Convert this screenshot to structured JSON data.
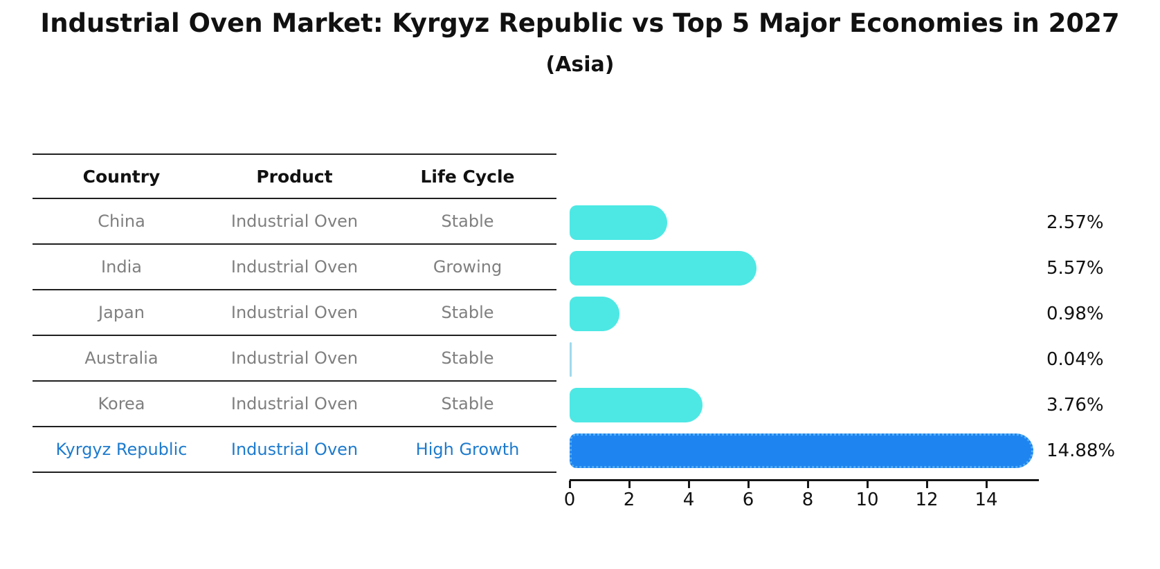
{
  "title": "Industrial Oven Market: Kyrgyz Republic vs Top 5 Major Economies in 2027",
  "subtitle": "(Asia)",
  "table": {
    "headers": [
      "Country",
      "Product",
      "Life Cycle"
    ],
    "rows": [
      {
        "country": "China",
        "product": "Industrial Oven",
        "life_cycle": "Stable",
        "highlight": false
      },
      {
        "country": "India",
        "product": "Industrial Oven",
        "life_cycle": "Growing",
        "highlight": false
      },
      {
        "country": "Japan",
        "product": "Industrial Oven",
        "life_cycle": "Stable",
        "highlight": false
      },
      {
        "country": "Australia",
        "product": "Industrial Oven",
        "life_cycle": "Stable",
        "highlight": false
      },
      {
        "country": "Korea",
        "product": "Industrial Oven",
        "life_cycle": "Stable",
        "highlight": false
      },
      {
        "country": "Kyrgyz Republic",
        "product": "Industrial Oven",
        "life_cycle": "High Growth",
        "highlight": true
      }
    ]
  },
  "chart_data": {
    "type": "bar",
    "orientation": "horizontal",
    "title": "Industrial Oven Market: Kyrgyz Republic vs Top 5 Major Economies in 2027",
    "subtitle": "(Asia)",
    "categories": [
      "China",
      "India",
      "Japan",
      "Australia",
      "Korea",
      "Kyrgyz Republic"
    ],
    "values": [
      2.57,
      5.57,
      0.98,
      0.04,
      3.76,
      14.88
    ],
    "value_labels": [
      "2.57%",
      "5.57%",
      "0.98%",
      "0.04%",
      "3.76%",
      "14.88%"
    ],
    "x_ticks": [
      0,
      2,
      4,
      6,
      8,
      10,
      12,
      14
    ],
    "xlim": [
      0,
      15.7
    ],
    "grid": false,
    "legend": false,
    "highlight_index": 5,
    "bar_color": "#4DE8E4",
    "sliver_color": "#9FDAED",
    "highlight_color": "#1E84F0",
    "highlight_border_color": "#55AFF5",
    "highlight_text_color": "#1E7BCD",
    "text_color": "#111111",
    "muted_text_color": "#7f7f7f"
  }
}
